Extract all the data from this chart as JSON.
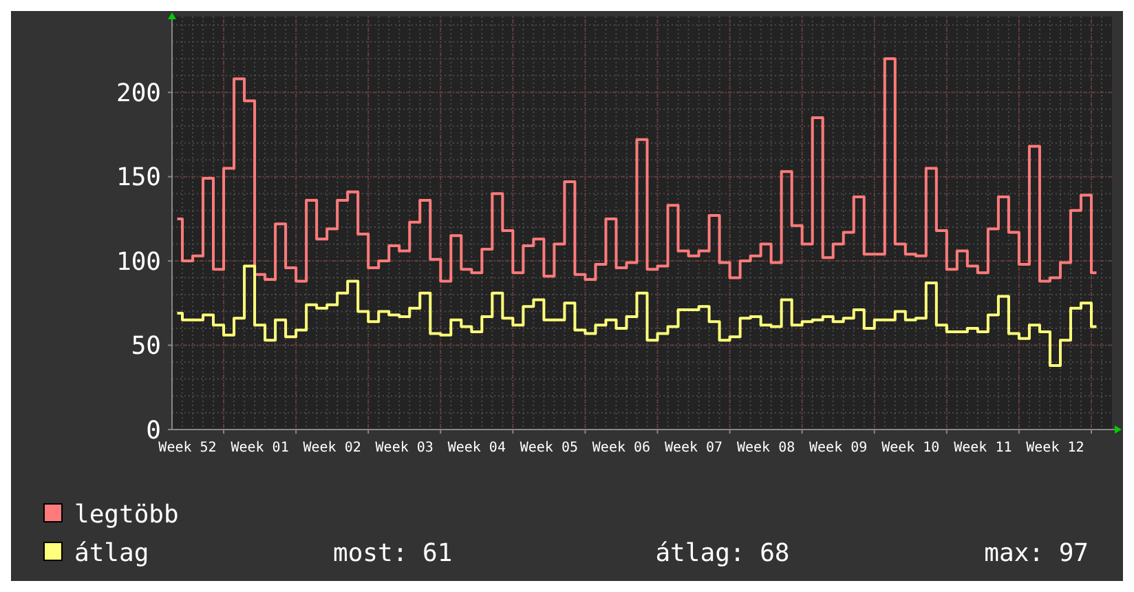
{
  "chart_data": {
    "type": "step",
    "categories": [
      null,
      "Week 52",
      null,
      null,
      null,
      null,
      null,
      null,
      "Week 01",
      null,
      null,
      null,
      null,
      null,
      null,
      "Week 02",
      null,
      null,
      null,
      null,
      null,
      null,
      "Week 03",
      null,
      null,
      null,
      null,
      null,
      null,
      "Week 04",
      null,
      null,
      null,
      null,
      null,
      null,
      "Week 05",
      null,
      null,
      null,
      null,
      null,
      null,
      "Week 06",
      null,
      null,
      null,
      null,
      null,
      null,
      "Week 07",
      null,
      null,
      null,
      null,
      null,
      null,
      "Week 08",
      null,
      null,
      null,
      null,
      null,
      null,
      "Week 09",
      null,
      null,
      null,
      null,
      null,
      null,
      "Week 10",
      null,
      null,
      null,
      null,
      null,
      null,
      "Week 11",
      null,
      null,
      null,
      null,
      null,
      null,
      "Week 12",
      null,
      null,
      null,
      null
    ],
    "series": [
      {
        "name": "legtöbb",
        "color": "#ff7b7b",
        "values": [
          125,
          100,
          103,
          149,
          95,
          155,
          208,
          195,
          92,
          89,
          122,
          96,
          88,
          136,
          113,
          119,
          136,
          141,
          116,
          96,
          100,
          109,
          106,
          123,
          136,
          101,
          88,
          115,
          95,
          93,
          107,
          140,
          118,
          93,
          109,
          113,
          91,
          110,
          147,
          92,
          89,
          98,
          125,
          96,
          99,
          172,
          95,
          97,
          133,
          106,
          103,
          106,
          127,
          99,
          90,
          100,
          103,
          110,
          99,
          153,
          121,
          110,
          185,
          102,
          110,
          117,
          138,
          104,
          104,
          220,
          110,
          104,
          103,
          155,
          118,
          95,
          106,
          97,
          93,
          119,
          138,
          117,
          98,
          168,
          88,
          90,
          99,
          130,
          139,
          93
        ]
      },
      {
        "name": "átlag",
        "color": "#ffff7b",
        "values": [
          69,
          65,
          65,
          68,
          62,
          56,
          66,
          97,
          62,
          53,
          65,
          55,
          59,
          74,
          72,
          74,
          81,
          88,
          70,
          64,
          70,
          68,
          67,
          72,
          81,
          57,
          56,
          65,
          61,
          58,
          67,
          81,
          66,
          62,
          73,
          77,
          65,
          65,
          75,
          59,
          57,
          62,
          65,
          60,
          67,
          81,
          53,
          57,
          61,
          71,
          71,
          73,
          64,
          53,
          55,
          66,
          67,
          62,
          61,
          77,
          62,
          64,
          65,
          67,
          64,
          66,
          71,
          60,
          65,
          65,
          70,
          65,
          66,
          87,
          62,
          58,
          58,
          60,
          58,
          68,
          79,
          57,
          54,
          62,
          58,
          38,
          53,
          72,
          75,
          61
        ]
      }
    ],
    "ylim": [
      0,
      245
    ],
    "yticks": [
      0,
      50,
      100,
      150,
      200
    ],
    "grid": true,
    "legend": "bottom left",
    "annotations": [
      "most: 61",
      "átlag: 68",
      "max: 97"
    ]
  }
}
